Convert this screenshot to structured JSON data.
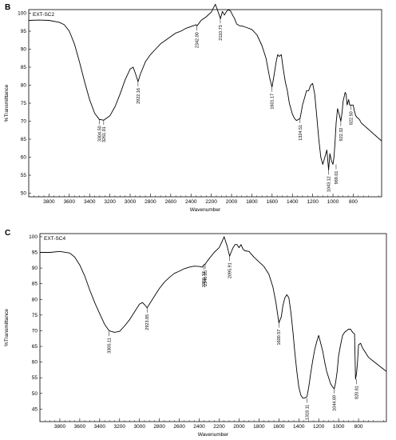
{
  "chart_data": [
    {
      "panel_letter": "B",
      "type": "line",
      "sample_label": "EXT-SC2",
      "xlabel": "Wavenumber",
      "ylabel": "%Transmittance",
      "xlim": [
        4000,
        520
      ],
      "ylim": [
        49,
        101
      ],
      "x_reversed": true,
      "x_ticks": [
        3800,
        3600,
        3400,
        3200,
        3000,
        2800,
        2600,
        2400,
        2200,
        2000,
        1800,
        1600,
        1400,
        1200,
        1000,
        800
      ],
      "y_ticks": [
        50,
        55,
        60,
        65,
        70,
        75,
        80,
        85,
        90,
        95,
        100
      ],
      "series": [
        {
          "x": [
            4000,
            3900,
            3800,
            3700,
            3650,
            3600,
            3550,
            3500,
            3450,
            3400,
            3350,
            3304,
            3261,
            3200,
            3150,
            3100,
            3050,
            3000,
            2970,
            2945,
            2922,
            2900,
            2850,
            2800,
            2750,
            2700,
            2650,
            2600,
            2550,
            2500,
            2450,
            2400,
            2350,
            2340,
            2300,
            2250,
            2200,
            2160,
            2140,
            2110,
            2090,
            2070,
            2050,
            2030,
            2010,
            1990,
            1970,
            1950,
            1920,
            1900,
            1850,
            1800,
            1750,
            1700,
            1660,
            1640,
            1620,
            1601,
            1585,
            1560,
            1545,
            1530,
            1510,
            1490,
            1470,
            1450,
            1430,
            1400,
            1380,
            1360,
            1340,
            1324,
            1300,
            1280,
            1260,
            1240,
            1220,
            1200,
            1180,
            1160,
            1140,
            1120,
            1100,
            1080,
            1060,
            1043,
            1030,
            1015,
            1000,
            990,
            980,
            969,
            955,
            940,
            922,
            910,
            900,
            880,
            870,
            860,
            845,
            835,
            822,
            810,
            800,
            790,
            775,
            760,
            740,
            720,
            700,
            680,
            660,
            640,
            620,
            600,
            580,
            560,
            540,
            520
          ],
          "y": [
            98,
            98.1,
            98,
            97.5,
            96.8,
            95,
            91.5,
            86.5,
            81,
            76,
            72.2,
            70.5,
            70.3,
            71.5,
            74,
            77.5,
            81.5,
            84.5,
            85,
            83,
            81,
            83,
            86.5,
            88.5,
            90,
            91.5,
            92.5,
            93.5,
            94.5,
            95,
            95.8,
            96.3,
            96.8,
            96.5,
            98,
            99,
            100.3,
            102.5,
            101,
            98.5,
            100.5,
            99.5,
            100.5,
            101,
            100.6,
            99.5,
            98.5,
            97,
            96.5,
            96.5,
            96,
            95.5,
            94,
            91,
            87.5,
            84.5,
            81.5,
            79.5,
            82,
            86.5,
            88.5,
            88,
            88.5,
            84.5,
            81,
            78.5,
            75,
            72,
            70.8,
            70.2,
            70.5,
            70.8,
            74.5,
            76.5,
            78.5,
            78.5,
            80,
            80.5,
            77.5,
            71.5,
            65,
            60,
            58,
            60,
            62,
            56.5,
            61,
            59,
            58,
            60,
            64,
            69.5,
            73.5,
            72,
            70,
            72.5,
            75.5,
            78,
            77.5,
            74.5,
            76,
            74.5,
            74.5,
            74.5,
            74.5,
            73,
            71.5,
            71,
            70.5,
            69.5,
            69,
            68.5,
            68,
            67.5,
            67,
            66.5,
            66,
            65.5,
            65,
            64.5
          ]
        }
      ],
      "annotations": [
        {
          "x": 3304.5,
          "y": 70.5,
          "label": "3304.50"
        },
        {
          "x": 3261.0,
          "y": 70.3,
          "label": "3261.01"
        },
        {
          "x": 2922.16,
          "y": 81,
          "label": "2922.16"
        },
        {
          "x": 2342.0,
          "y": 96.5,
          "label": "2342.00"
        },
        {
          "x": 2110.73,
          "y": 98.5,
          "label": "2110.73"
        },
        {
          "x": 1601.17,
          "y": 79.5,
          "label": "1601.17"
        },
        {
          "x": 1324.51,
          "y": 70.8,
          "label": "1324.51"
        },
        {
          "x": 1043.12,
          "y": 56.5,
          "label": "1043.12"
        },
        {
          "x": 969.01,
          "y": 58,
          "label": "969.01"
        },
        {
          "x": 922.32,
          "y": 70,
          "label": "922.32"
        },
        {
          "x": 822.5,
          "y": 74.5,
          "label": "822.50"
        }
      ]
    },
    {
      "panel_letter": "C",
      "type": "line",
      "sample_label": "EXT-SC4",
      "xlabel": "Wavenumber",
      "ylabel": "%Transmittance",
      "xlim": [
        4000,
        520
      ],
      "ylim": [
        41,
        101
      ],
      "x_reversed": true,
      "x_ticks": [
        3800,
        3600,
        3400,
        3200,
        3000,
        2800,
        2600,
        2400,
        2200,
        2000,
        1800,
        1600,
        1400,
        1200,
        1000,
        800
      ],
      "y_ticks": [
        45,
        50,
        55,
        60,
        65,
        70,
        75,
        80,
        85,
        90,
        95,
        100
      ],
      "series": [
        {
          "x": [
            4000,
            3900,
            3800,
            3700,
            3650,
            3600,
            3550,
            3500,
            3450,
            3400,
            3350,
            3305,
            3250,
            3200,
            3150,
            3100,
            3050,
            3000,
            2970,
            2940,
            2923,
            2900,
            2850,
            2800,
            2750,
            2700,
            2650,
            2600,
            2550,
            2500,
            2450,
            2400,
            2370,
            2355,
            2340,
            2300,
            2250,
            2200,
            2170,
            2150,
            2120,
            2095,
            2080,
            2060,
            2040,
            2020,
            2000,
            1980,
            1960,
            1940,
            1900,
            1850,
            1800,
            1750,
            1700,
            1660,
            1630,
            1600,
            1575,
            1560,
            1540,
            1520,
            1500,
            1480,
            1460,
            1440,
            1420,
            1400,
            1380,
            1360,
            1340,
            1318,
            1300,
            1280,
            1260,
            1240,
            1220,
            1200,
            1180,
            1160,
            1140,
            1120,
            1100,
            1080,
            1060,
            1044,
            1030,
            1015,
            1000,
            980,
            960,
            940,
            920,
            900,
            880,
            860,
            840,
            830,
            820,
            810,
            800,
            780,
            760,
            740,
            720,
            700,
            680,
            660,
            640,
            620,
            600,
            580,
            560,
            540,
            520
          ],
          "y": [
            95,
            95,
            95.3,
            94.8,
            93.5,
            91,
            87.5,
            83,
            79,
            75.5,
            72,
            70,
            69.5,
            69.8,
            71.5,
            73.5,
            76,
            78.5,
            79,
            78,
            77.3,
            78.5,
            81,
            83.5,
            85.5,
            87,
            88.3,
            89,
            89.8,
            90.3,
            90.6,
            90.5,
            90.3,
            91,
            91.3,
            93,
            95,
            96.5,
            98.5,
            100,
            97,
            93.8,
            95,
            96.5,
            97.5,
            97.5,
            96.5,
            97.5,
            96,
            95.5,
            95.3,
            93.5,
            92,
            90.5,
            88,
            84,
            79,
            72.5,
            74.5,
            78,
            80.5,
            81.5,
            80.5,
            76,
            70,
            63,
            57,
            52,
            49.5,
            48.5,
            48.5,
            49,
            52,
            56.5,
            60.5,
            64,
            66.5,
            68.5,
            66,
            63.5,
            60,
            57,
            55,
            53,
            52,
            51.5,
            53.5,
            57,
            62,
            65.5,
            68.5,
            69.5,
            70,
            70.5,
            70.5,
            69.5,
            69,
            54.5,
            56.5,
            60,
            65.5,
            66,
            64.5,
            63.5,
            62.5,
            61.5,
            61,
            60.5,
            60,
            59.5,
            59,
            58.5,
            58,
            57.5,
            57
          ]
        }
      ],
      "annotations": [
        {
          "x": 3305.11,
          "y": 69.8,
          "label": "3305.11"
        },
        {
          "x": 2923.85,
          "y": 77.3,
          "label": "2923.85"
        },
        {
          "x": 2355.37,
          "y": 91,
          "label": "2355.37"
        },
        {
          "x": 2340.05,
          "y": 91.3,
          "label": "2340.05"
        },
        {
          "x": 2095.91,
          "y": 93.8,
          "label": "2095.91"
        },
        {
          "x": 1600.57,
          "y": 72.5,
          "label": "1600.57"
        },
        {
          "x": 1318.11,
          "y": 48.5,
          "label": "1318.11"
        },
        {
          "x": 1044.69,
          "y": 51.5,
          "label": "1044.69"
        },
        {
          "x": 820.81,
          "y": 54.5,
          "label": "820.81"
        }
      ]
    }
  ]
}
